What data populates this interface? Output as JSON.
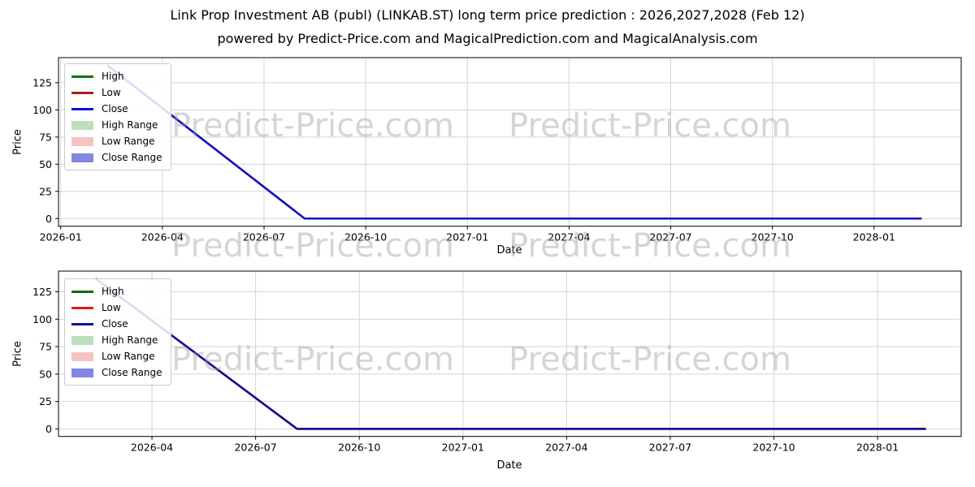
{
  "header": {
    "title": "Link Prop Investment AB (publ) (LINKAB.ST) long term price prediction : 2026,2027,2028 (Feb 12)",
    "subtitle": "powered by Predict-Price.com and MagicalPrediction.com and MagicalAnalysis.com"
  },
  "watermark": {
    "text": "Predict-Price.com",
    "color": "#c9c9c9"
  },
  "chart_data": [
    {
      "type": "line",
      "id": "top",
      "title": "",
      "xlabel": "Date",
      "ylabel": "Price",
      "x_unit": "months since 2026-01-01",
      "xlim": [
        -0.065,
        26.57
      ],
      "ylim": [
        -7.05,
        148.05
      ],
      "grid": true,
      "legend_position": "upper-left",
      "yticks": [
        0,
        25,
        50,
        75,
        100,
        125
      ],
      "xticks": [
        {
          "m": 0,
          "label": "2026-01"
        },
        {
          "m": 3,
          "label": "2026-04"
        },
        {
          "m": 6,
          "label": "2026-07"
        },
        {
          "m": 9,
          "label": "2026-10"
        },
        {
          "m": 12,
          "label": "2027-01"
        },
        {
          "m": 15,
          "label": "2027-04"
        },
        {
          "m": 18,
          "label": "2027-07"
        },
        {
          "m": 21,
          "label": "2027-10"
        },
        {
          "m": 24,
          "label": "2028-01"
        }
      ],
      "series": [
        {
          "name": "High",
          "color": "#0b7a0b",
          "points": [
            [
              1.37,
              141
            ],
            [
              7.2,
              0
            ],
            [
              25.4,
              0
            ]
          ]
        },
        {
          "name": "Low",
          "color": "#a32020",
          "points": [
            [
              1.37,
              141
            ],
            [
              7.2,
              0
            ],
            [
              25.4,
              0
            ]
          ]
        },
        {
          "name": "Close",
          "color": "#1212d0",
          "points": [
            [
              1.37,
              141
            ],
            [
              7.2,
              0
            ],
            [
              25.4,
              0
            ]
          ]
        }
      ],
      "legend": [
        {
          "label": "High",
          "type": "line",
          "color": "#0b7a0b"
        },
        {
          "label": "Low",
          "type": "line",
          "color": "#a32020"
        },
        {
          "label": "Close",
          "type": "line",
          "color": "#1212d0"
        },
        {
          "label": "High Range",
          "type": "patch",
          "color": "#bcdfbc"
        },
        {
          "label": "Low Range",
          "type": "patch",
          "color": "#f7c3c3"
        },
        {
          "label": "Close Range",
          "type": "patch",
          "color": "#8287e2"
        }
      ]
    },
    {
      "type": "line",
      "id": "bottom",
      "title": "",
      "xlabel": "Date",
      "ylabel": "Price",
      "x_unit": "months since 2026-01-01",
      "xlim": [
        0.295,
        26.42
      ],
      "ylim": [
        -6.85,
        143.85
      ],
      "grid": true,
      "legend_position": "upper-left",
      "yticks": [
        0,
        25,
        50,
        75,
        100,
        125
      ],
      "xticks": [
        {
          "m": 3,
          "label": "2026-04"
        },
        {
          "m": 6,
          "label": "2026-07"
        },
        {
          "m": 9,
          "label": "2026-10"
        },
        {
          "m": 12,
          "label": "2027-01"
        },
        {
          "m": 15,
          "label": "2027-04"
        },
        {
          "m": 18,
          "label": "2027-07"
        },
        {
          "m": 21,
          "label": "2027-10"
        },
        {
          "m": 24,
          "label": "2028-01"
        }
      ],
      "series": [
        {
          "name": "High",
          "color": "#0a6e0a",
          "points": [
            [
              1.37,
              137
            ],
            [
              7.2,
              0
            ],
            [
              25.4,
              0
            ]
          ]
        },
        {
          "name": "Low",
          "color": "#df1b1b",
          "points": [
            [
              1.37,
              137
            ],
            [
              7.2,
              0
            ],
            [
              25.4,
              0
            ]
          ]
        },
        {
          "name": "Close",
          "color": "#10109b",
          "points": [
            [
              1.37,
              137
            ],
            [
              7.2,
              0
            ],
            [
              25.4,
              0
            ]
          ]
        }
      ],
      "legend": [
        {
          "label": "High",
          "type": "line",
          "color": "#0a6e0a"
        },
        {
          "label": "Low",
          "type": "line",
          "color": "#df1b1b"
        },
        {
          "label": "Close",
          "type": "line",
          "color": "#10109b"
        },
        {
          "label": "High Range",
          "type": "patch",
          "color": "#bcdfbc"
        },
        {
          "label": "Low Range",
          "type": "patch",
          "color": "#f7c3c3"
        },
        {
          "label": "Close Range",
          "type": "patch",
          "color": "#8287e2"
        }
      ]
    }
  ]
}
